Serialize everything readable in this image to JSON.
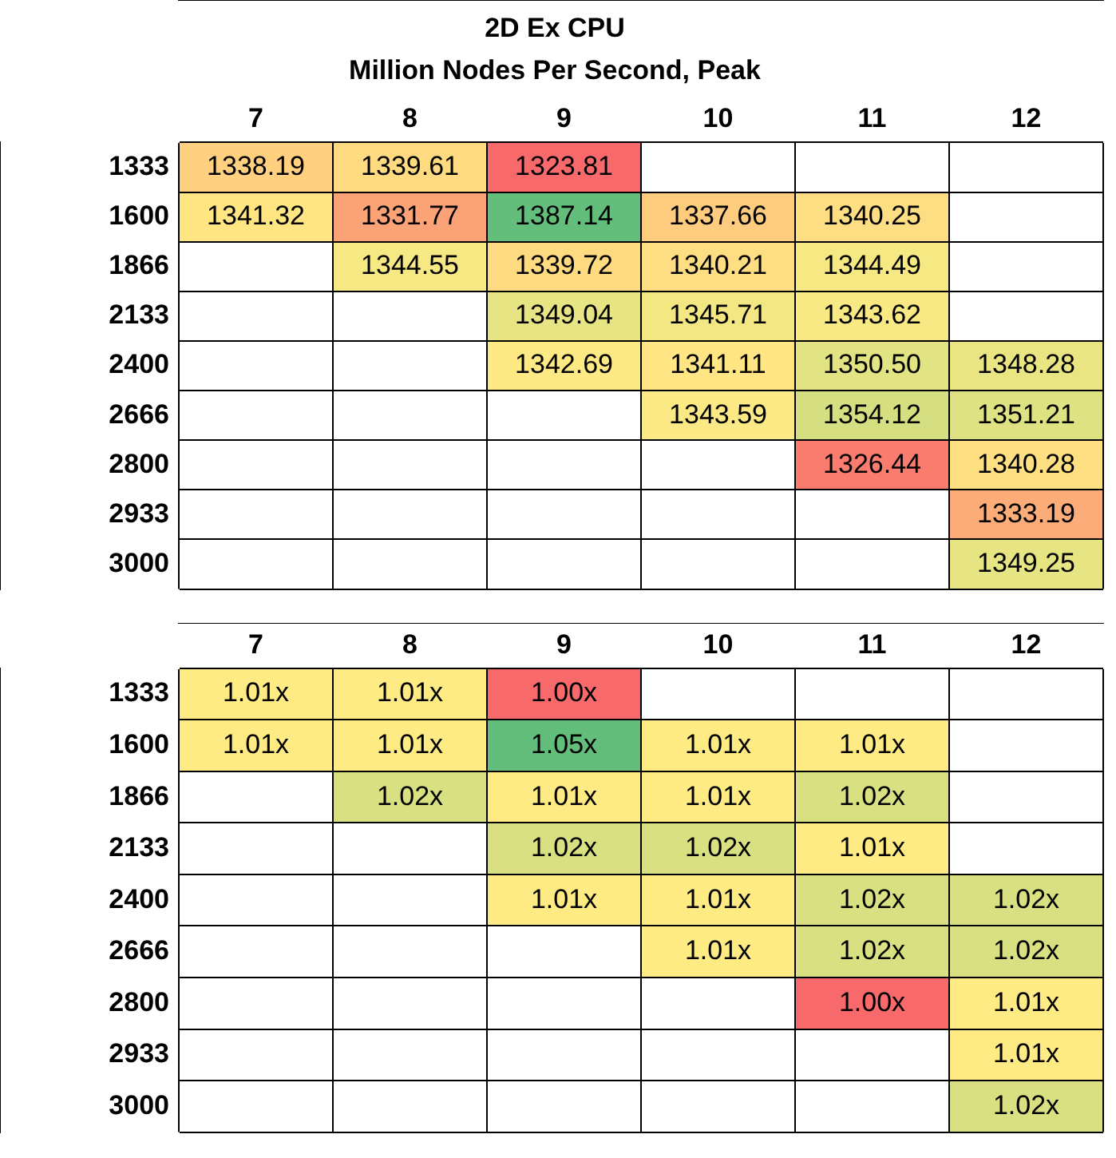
{
  "chart_data": [
    {
      "type": "heatmap",
      "title": "2D Ex CPU",
      "subtitle": "Million Nodes Per Second, Peak",
      "grid": true,
      "categories": [
        "7",
        "8",
        "9",
        "10",
        "11",
        "12"
      ],
      "y_categories": [
        "1333",
        "1600",
        "1866",
        "2133",
        "2400",
        "2666",
        "2800",
        "2933",
        "3000"
      ],
      "cells": [
        [
          1338.19,
          1339.61,
          1323.81,
          null,
          null,
          null
        ],
        [
          1341.32,
          1331.77,
          1387.14,
          1337.66,
          1340.25,
          null
        ],
        [
          null,
          1344.55,
          1339.72,
          1340.21,
          1344.49,
          null
        ],
        [
          null,
          null,
          1349.04,
          1345.71,
          1343.62,
          null
        ],
        [
          null,
          null,
          1342.69,
          1341.11,
          1350.5,
          1348.28
        ],
        [
          null,
          null,
          null,
          1343.59,
          1354.12,
          1351.21
        ],
        [
          null,
          null,
          null,
          null,
          1326.44,
          1340.28
        ],
        [
          null,
          null,
          null,
          null,
          null,
          1333.19
        ],
        [
          null,
          null,
          null,
          null,
          null,
          1349.25
        ]
      ],
      "cell_labels": [
        [
          "1338.19",
          "1339.61",
          "1323.81",
          null,
          null,
          null
        ],
        [
          "1341.32",
          "1331.77",
          "1387.14",
          "1337.66",
          "1340.25",
          null
        ],
        [
          null,
          "1344.55",
          "1339.72",
          "1340.21",
          "1344.49",
          null
        ],
        [
          null,
          null,
          "1349.04",
          "1345.71",
          "1343.62",
          null
        ],
        [
          null,
          null,
          "1342.69",
          "1341.11",
          "1350.50",
          "1348.28"
        ],
        [
          null,
          null,
          null,
          "1343.59",
          "1354.12",
          "1351.21"
        ],
        [
          null,
          null,
          null,
          null,
          "1326.44",
          "1340.28"
        ],
        [
          null,
          null,
          null,
          null,
          null,
          "1333.19"
        ],
        [
          null,
          null,
          null,
          null,
          null,
          "1349.25"
        ]
      ]
    },
    {
      "type": "heatmap",
      "grid": true,
      "categories": [
        "7",
        "8",
        "9",
        "10",
        "11",
        "12"
      ],
      "y_categories": [
        "1333",
        "1600",
        "1866",
        "2133",
        "2400",
        "2666",
        "2800",
        "2933",
        "3000"
      ],
      "cells": [
        [
          1.01,
          1.01,
          1.0,
          null,
          null,
          null
        ],
        [
          1.01,
          1.01,
          1.05,
          1.01,
          1.01,
          null
        ],
        [
          null,
          1.02,
          1.01,
          1.01,
          1.02,
          null
        ],
        [
          null,
          null,
          1.02,
          1.02,
          1.01,
          null
        ],
        [
          null,
          null,
          1.01,
          1.01,
          1.02,
          1.02
        ],
        [
          null,
          null,
          null,
          1.01,
          1.02,
          1.02
        ],
        [
          null,
          null,
          null,
          null,
          1.0,
          1.01
        ],
        [
          null,
          null,
          null,
          null,
          null,
          1.01
        ],
        [
          null,
          null,
          null,
          null,
          null,
          1.02
        ]
      ],
      "cell_labels": [
        [
          "1.01x",
          "1.01x",
          "1.00x",
          null,
          null,
          null
        ],
        [
          "1.01x",
          "1.01x",
          "1.05x",
          "1.01x",
          "1.01x",
          null
        ],
        [
          null,
          "1.02x",
          "1.01x",
          "1.01x",
          "1.02x",
          null
        ],
        [
          null,
          null,
          "1.02x",
          "1.02x",
          "1.01x",
          null
        ],
        [
          null,
          null,
          "1.01x",
          "1.01x",
          "1.02x",
          "1.02x"
        ],
        [
          null,
          null,
          null,
          "1.01x",
          "1.02x",
          "1.02x"
        ],
        [
          null,
          null,
          null,
          null,
          "1.00x",
          "1.01x"
        ],
        [
          null,
          null,
          null,
          null,
          null,
          "1.01x"
        ],
        [
          null,
          null,
          null,
          null,
          null,
          "1.02x"
        ]
      ]
    }
  ]
}
